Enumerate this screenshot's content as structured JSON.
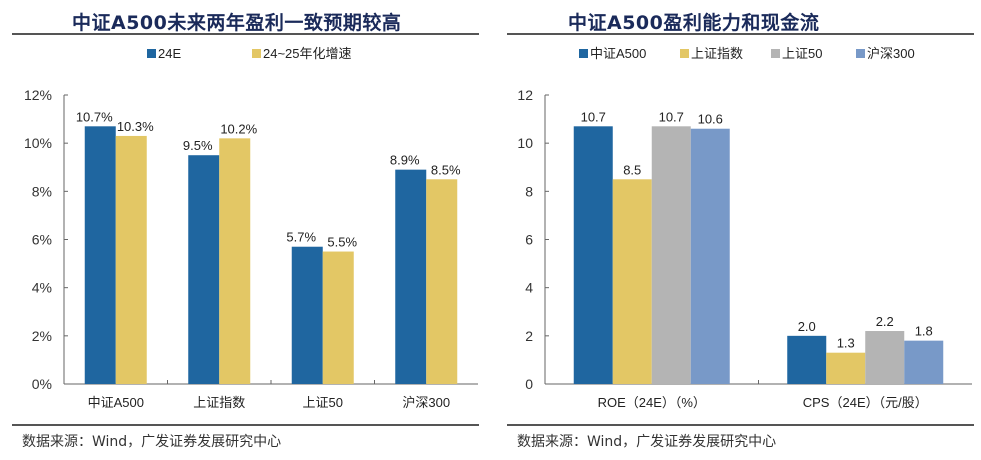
{
  "chart_data": [
    {
      "type": "bar",
      "title": "中证A500未来两年盈利一致预期较高",
      "categories": [
        "中证A500",
        "上证指数",
        "上证50",
        "沪深300"
      ],
      "series": [
        {
          "name": "24E",
          "color": "#1f66a0",
          "values": [
            10.7,
            9.5,
            5.7,
            8.9
          ],
          "labels": [
            "10.7%",
            "9.5%",
            "5.7%",
            "8.9%"
          ]
        },
        {
          "name": "24~25年化增速",
          "color": "#e3c765",
          "values": [
            10.3,
            10.2,
            5.5,
            8.5
          ],
          "labels": [
            "10.3%",
            "10.2%",
            "5.5%",
            "8.5%"
          ]
        }
      ],
      "yticks": [
        "0%",
        "2%",
        "4%",
        "6%",
        "8%",
        "10%",
        "12%"
      ],
      "ylim": [
        0,
        12
      ],
      "xlabel": "",
      "ylabel": "",
      "legend": "top-center",
      "grid": false
    },
    {
      "type": "bar",
      "title": "中证A500盈利能力和现金流",
      "categories": [
        "ROE（24E）（%）",
        "CPS（24E）（元/股）"
      ],
      "series": [
        {
          "name": "中证A500",
          "color": "#1f66a0",
          "values": [
            10.7,
            2.0
          ],
          "labels": [
            "10.7",
            "2.0"
          ]
        },
        {
          "name": "上证指数",
          "color": "#e3c765",
          "values": [
            8.5,
            1.3
          ],
          "labels": [
            "8.5",
            "1.3"
          ]
        },
        {
          "name": "上证50",
          "color": "#b4b4b4",
          "values": [
            10.7,
            2.2
          ],
          "labels": [
            "10.7",
            "2.2"
          ]
        },
        {
          "name": "沪深300",
          "color": "#7899c8",
          "values": [
            10.6,
            1.8
          ],
          "labels": [
            "10.6",
            "1.8"
          ]
        }
      ],
      "yticks": [
        "0",
        "2",
        "4",
        "6",
        "8",
        "10",
        "12"
      ],
      "ylim": [
        0,
        12
      ],
      "xlabel": "",
      "ylabel": "",
      "legend": "top-center",
      "grid": false
    }
  ],
  "left": {
    "title": "中证A500未来两年盈利一致预期较高",
    "source": "数据来源：Wind，广发证券发展研究中心"
  },
  "right": {
    "title": "中证A500盈利能力和现金流",
    "source": "数据来源：Wind，广发证券发展研究中心"
  }
}
